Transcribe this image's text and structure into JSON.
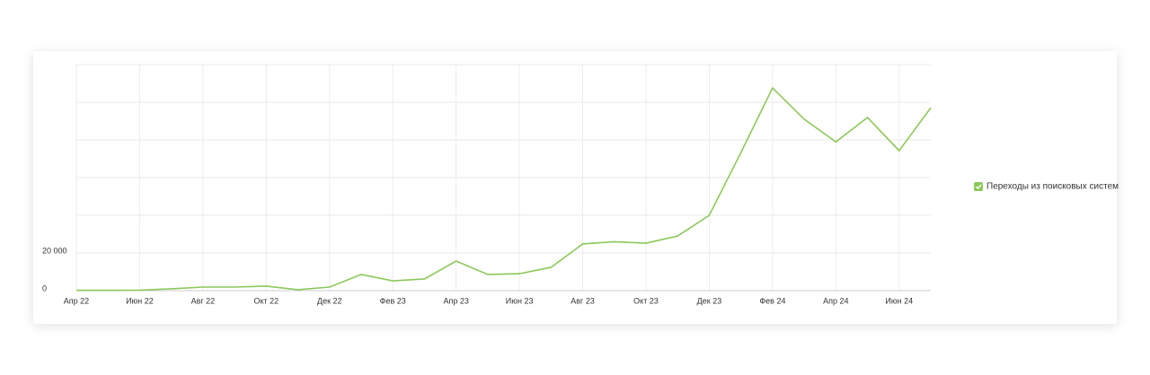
{
  "chart_data": {
    "type": "line",
    "categories": [
      "Апр 22",
      null,
      "Июн 22",
      null,
      "Авг 22",
      null,
      "Окт 22",
      null,
      "Дек 22",
      null,
      "Фев 23",
      null,
      "Апр 23",
      null,
      "Июн 23",
      null,
      "Авг 23",
      null,
      "Окт 23",
      null,
      "Дек 23",
      null,
      "Фев 24",
      null,
      "Апр 24",
      null,
      "Июн 24",
      null
    ],
    "series": [
      {
        "name": "Переходы из поисковых систем",
        "color": "#8cc85a",
        "values": [
          200,
          200,
          300,
          1000,
          1900,
          1900,
          2400,
          500,
          1900,
          8600,
          5200,
          6200,
          15700,
          8600,
          9000,
          12400,
          24800,
          26000,
          25200,
          29000,
          40000,
          73300,
          107600,
          91000,
          79000,
          91900,
          74300,
          97100
        ]
      }
    ],
    "ylim": [
      0,
      120000
    ],
    "yticks": [
      0,
      {
        "value": 20000,
        "label": "20 000"
      },
      {
        "value": 40000,
        "label": null
      },
      {
        "value": 60000,
        "label": null
      },
      {
        "value": 80000,
        "label": null
      },
      {
        "value": 100000,
        "label": null
      },
      {
        "value": 120000,
        "label": null
      }
    ],
    "grid": true
  }
}
